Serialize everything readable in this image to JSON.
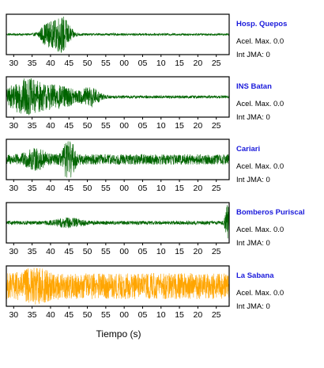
{
  "chart_data": {
    "type": "line",
    "xlabel": "Tiempo (s)",
    "x_ticks": [
      "30",
      "35",
      "40",
      "45",
      "50",
      "55",
      "00",
      "05",
      "10",
      "15",
      "20",
      "25"
    ],
    "acel_label": "Acel. Max. 0.0",
    "int_label": "Int JMA: 0",
    "series": [
      {
        "name": "Hosp. Quepos",
        "color": "#006400",
        "noise_amplitude": 0.06,
        "bursts": [
          {
            "center_s": 39,
            "width_s": 2.0,
            "amplitude": 0.55
          },
          {
            "center_s": 43,
            "width_s": 2.4,
            "amplitude": 1.0
          }
        ]
      },
      {
        "name": "INS Batan",
        "color": "#006400",
        "noise_amplitude": 0.08,
        "bursts": [
          {
            "center_s": 33,
            "width_s": 5.0,
            "amplitude": 0.9
          },
          {
            "center_s": 42,
            "width_s": 6.0,
            "amplitude": 0.55
          },
          {
            "center_s": 51,
            "width_s": 2.5,
            "amplitude": 0.45
          }
        ]
      },
      {
        "name": "Cariari",
        "color": "#006400",
        "noise_amplitude": 0.28,
        "bursts": [
          {
            "center_s": 45,
            "width_s": 1.5,
            "amplitude": 1.0
          },
          {
            "center_s": 36,
            "width_s": 3.0,
            "amplitude": 0.35
          }
        ]
      },
      {
        "name": "Bomberos Puriscal",
        "color": "#006400",
        "noise_amplitude": 0.1,
        "bursts": [
          {
            "center_s": 88,
            "width_s": 0.6,
            "amplitude": 1.0
          },
          {
            "center_s": 45,
            "width_s": 4.0,
            "amplitude": 0.2
          }
        ]
      },
      {
        "name": "La Sabana",
        "color": "#FFA500",
        "noise_amplitude": 0.7,
        "bursts": [
          {
            "center_s": 36,
            "width_s": 4.0,
            "amplitude": 0.35
          }
        ]
      }
    ]
  }
}
